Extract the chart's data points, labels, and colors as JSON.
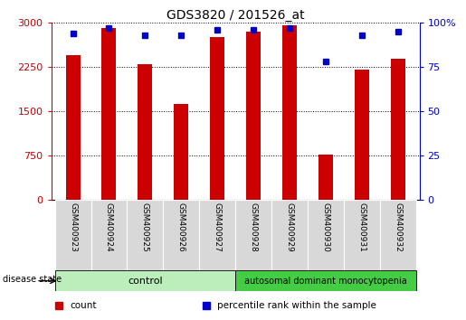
{
  "title": "GDS3820 / 201526_at",
  "samples": [
    "GSM400923",
    "GSM400924",
    "GSM400925",
    "GSM400926",
    "GSM400927",
    "GSM400928",
    "GSM400929",
    "GSM400930",
    "GSM400931",
    "GSM400932"
  ],
  "counts": [
    2450,
    2900,
    2300,
    1620,
    2750,
    2850,
    2950,
    760,
    2200,
    2380
  ],
  "percentiles": [
    94,
    97,
    93,
    93,
    96,
    96,
    97,
    78,
    93,
    95
  ],
  "bar_color": "#cc0000",
  "percentile_color": "#0000cc",
  "ylim_left": [
    0,
    3000
  ],
  "ylim_right": [
    0,
    100
  ],
  "yticks_left": [
    0,
    750,
    1500,
    2250,
    3000
  ],
  "ytick_labels_left": [
    "0",
    "750",
    "1500",
    "2250",
    "3000"
  ],
  "yticks_right": [
    0,
    25,
    50,
    75,
    100
  ],
  "ytick_labels_right": [
    "0",
    "25",
    "50",
    "75",
    "100%"
  ],
  "control_n": 5,
  "disease_n": 5,
  "control_color": "#bbeebb",
  "disease_color": "#44cc44",
  "disease_state_label": "disease state",
  "legend_items": [
    {
      "label": "count",
      "color": "#cc0000",
      "marker": "s"
    },
    {
      "label": "percentile rank within the sample",
      "color": "#0000cc",
      "marker": "s"
    }
  ],
  "grid_color": "black",
  "background_color": "white",
  "bar_width": 0.4
}
